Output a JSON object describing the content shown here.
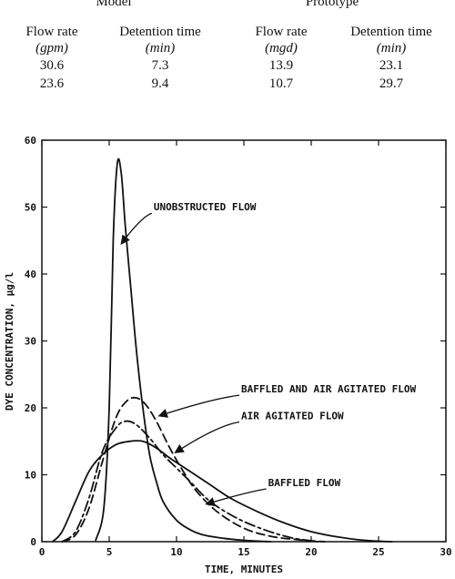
{
  "table": {
    "groups": [
      {
        "title": "Model",
        "columns": [
          {
            "label": "Flow rate",
            "unit": "(gpm)"
          },
          {
            "label": "Detention time",
            "unit": "(min)"
          }
        ]
      },
      {
        "title": "Prototype",
        "columns": [
          {
            "label": "Flow rate",
            "unit": "(mgd)"
          },
          {
            "label": "Detention time",
            "unit": "(min)"
          }
        ]
      }
    ],
    "rows": [
      [
        "30.6",
        "7.3",
        "13.9",
        "23.1"
      ],
      [
        "23.6",
        "9.4",
        "10.7",
        "29.7"
      ]
    ]
  },
  "chart_data": {
    "type": "line",
    "xlabel": "TIME, MINUTES",
    "ylabel": "DYE CONCENTRATION, µg/l",
    "xlim": [
      0,
      30
    ],
    "ylim": [
      0,
      60
    ],
    "xticks": [
      0,
      5,
      10,
      15,
      20,
      25,
      30
    ],
    "yticks": [
      0,
      10,
      20,
      30,
      40,
      50,
      60
    ],
    "grid": false,
    "series": [
      {
        "name": "UNOBSTRUCTED FLOW",
        "style": "solid",
        "x": [
          4.0,
          4.6,
          5.0,
          5.3,
          5.6,
          5.9,
          6.2,
          6.6,
          7.0,
          7.5,
          8.0,
          8.5,
          9.0,
          10.0,
          11.0,
          12.0,
          13.5,
          15.0,
          17.0
        ],
        "y": [
          0.2,
          5.0,
          20.0,
          45.0,
          56.5,
          55.0,
          47.0,
          38.0,
          29.0,
          20.0,
          13.0,
          9.0,
          6.0,
          3.2,
          1.8,
          1.0,
          0.5,
          0.2,
          0.0
        ]
      },
      {
        "name": "BAFFLED AND AIR AGITATED FLOW",
        "style": "dashed",
        "x": [
          1.5,
          2.5,
          3.5,
          4.5,
          5.5,
          6.3,
          7.0,
          7.7,
          8.5,
          9.5,
          10.5,
          11.5,
          13.0,
          15.0,
          17.0,
          19.0,
          21.0
        ],
        "y": [
          0.0,
          1.0,
          5.0,
          12.0,
          18.5,
          21.0,
          21.5,
          20.5,
          18.0,
          14.0,
          10.5,
          7.5,
          4.5,
          2.0,
          0.8,
          0.3,
          0.0
        ]
      },
      {
        "name": "AIR AGITATED FLOW",
        "style": "dash-dot",
        "x": [
          1.5,
          2.5,
          3.5,
          4.5,
          5.5,
          6.2,
          7.0,
          8.0,
          9.0,
          10.0,
          11.0,
          12.5,
          14.5,
          16.5,
          18.5,
          20.5
        ],
        "y": [
          0.0,
          1.5,
          6.5,
          13.5,
          17.0,
          18.0,
          17.5,
          15.5,
          13.0,
          11.0,
          9.0,
          6.0,
          3.5,
          1.8,
          0.6,
          0.0
        ]
      },
      {
        "name": "BAFFLED FLOW",
        "style": "solid",
        "x": [
          0.8,
          1.5,
          2.5,
          3.5,
          4.5,
          5.5,
          6.5,
          7.5,
          8.5,
          9.5,
          11.0,
          12.5,
          14.0,
          16.0,
          18.0,
          20.0,
          22.0,
          24.0,
          26.0
        ],
        "y": [
          0.0,
          1.5,
          6.0,
          10.5,
          13.0,
          14.5,
          15.0,
          15.0,
          14.0,
          12.5,
          10.5,
          8.5,
          6.5,
          4.5,
          2.8,
          1.5,
          0.7,
          0.2,
          0.0
        ]
      }
    ],
    "annotations": [
      {
        "text": "UNOBSTRUCTED FLOW",
        "x": 8.3,
        "y": 49.5,
        "arrow_to": [
          5.9,
          44.5
        ]
      },
      {
        "text": "BAFFLED AND AIR AGITATED FLOW",
        "x": 14.8,
        "y": 22.3,
        "arrow_to": [
          8.7,
          18.8
        ]
      },
      {
        "text": "AIR AGITATED FLOW",
        "x": 14.8,
        "y": 18.3,
        "arrow_to": [
          9.9,
          13.3
        ]
      },
      {
        "text": "BAFFLED FLOW",
        "x": 16.8,
        "y": 8.3,
        "arrow_to": [
          12.2,
          5.6
        ]
      }
    ]
  }
}
